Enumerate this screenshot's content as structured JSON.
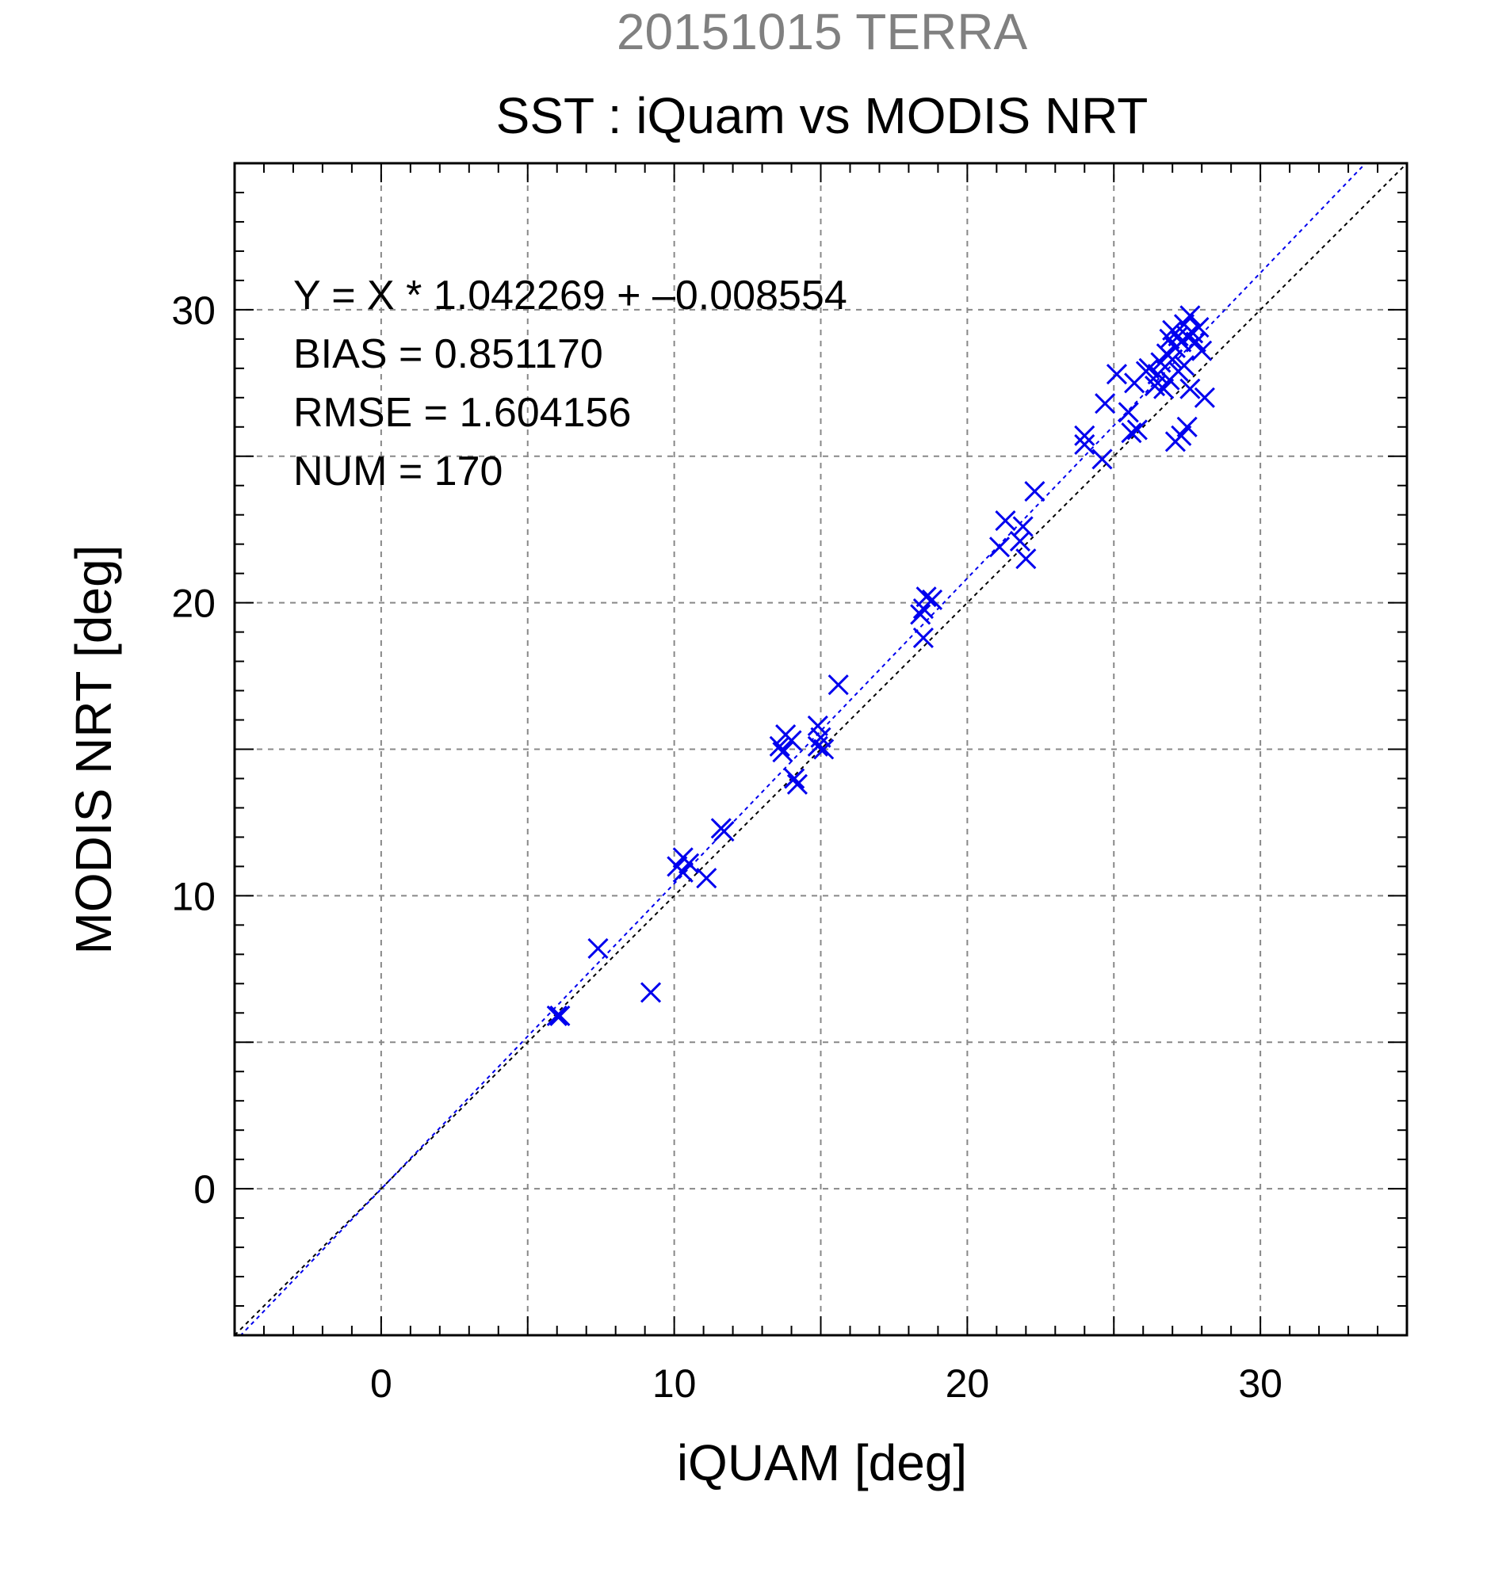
{
  "chart_data": {
    "type": "scatter",
    "title": "SST : iQuam vs MODIS NRT",
    "subtitle": "20151015 TERRA",
    "xlabel": "iQUAM [deg]",
    "ylabel": "MODIS NRT [deg]",
    "xlim": [
      -5,
      35
    ],
    "ylim": [
      -5,
      35
    ],
    "x_ticks": [
      0,
      10,
      20,
      30
    ],
    "y_ticks": [
      0,
      10,
      20,
      30
    ],
    "x_tick_labels": [
      "0",
      "10",
      "20",
      "30"
    ],
    "y_tick_labels": [
      "0",
      "10",
      "20",
      "30"
    ],
    "grid": true,
    "colors": {
      "points": "#0000ee",
      "fit_line": "#0000ee",
      "one_to_one": "#000000",
      "subtitle": "#808080",
      "text": "#000000",
      "grid": "#888888"
    },
    "stats": {
      "equation": "Y = X * 1.042269 + –0.008554",
      "bias": "BIAS = 0.851170",
      "rmse": "RMSE = 1.604156",
      "num": "NUM = 170"
    },
    "fit": {
      "slope": 1.042269,
      "intercept": -0.008554
    },
    "series": [
      {
        "marker": "x",
        "points": [
          [
            6.0,
            5.9
          ],
          [
            6.1,
            5.9
          ],
          [
            7.4,
            8.2
          ],
          [
            9.2,
            6.7
          ],
          [
            10.1,
            11.0
          ],
          [
            10.3,
            11.3
          ],
          [
            10.5,
            11.1
          ],
          [
            10.3,
            10.8
          ],
          [
            11.1,
            10.6
          ],
          [
            11.6,
            12.3
          ],
          [
            11.7,
            12.2
          ],
          [
            13.6,
            15.1
          ],
          [
            13.8,
            15.5
          ],
          [
            14.0,
            15.3
          ],
          [
            13.7,
            14.9
          ],
          [
            14.1,
            14.0
          ],
          [
            14.2,
            13.8
          ],
          [
            14.9,
            15.1
          ],
          [
            15.0,
            15.4
          ],
          [
            14.9,
            15.8
          ],
          [
            15.1,
            15.0
          ],
          [
            15.6,
            17.2
          ],
          [
            18.4,
            19.6
          ],
          [
            18.5,
            19.8
          ],
          [
            18.6,
            20.2
          ],
          [
            18.8,
            20.1
          ],
          [
            18.5,
            18.8
          ],
          [
            21.1,
            21.9
          ],
          [
            21.3,
            22.8
          ],
          [
            21.8,
            22.1
          ],
          [
            21.9,
            22.6
          ],
          [
            22.0,
            21.5
          ],
          [
            22.3,
            23.8
          ],
          [
            24.0,
            25.7
          ],
          [
            24.0,
            25.4
          ],
          [
            24.6,
            24.9
          ],
          [
            24.7,
            26.8
          ],
          [
            25.1,
            27.8
          ],
          [
            25.5,
            26.5
          ],
          [
            25.6,
            25.8
          ],
          [
            25.7,
            27.5
          ],
          [
            25.8,
            25.9
          ],
          [
            26.1,
            27.9
          ],
          [
            26.2,
            28.0
          ],
          [
            26.4,
            27.4
          ],
          [
            26.5,
            27.8
          ],
          [
            26.6,
            28.2
          ],
          [
            26.7,
            27.3
          ],
          [
            26.8,
            28.5
          ],
          [
            26.9,
            29.0
          ],
          [
            26.9,
            27.6
          ],
          [
            27.0,
            28.3
          ],
          [
            27.0,
            29.3
          ],
          [
            27.1,
            28.7
          ],
          [
            27.1,
            25.5
          ],
          [
            27.2,
            29.1
          ],
          [
            27.2,
            27.9
          ],
          [
            27.3,
            28.9
          ],
          [
            27.3,
            25.7
          ],
          [
            27.4,
            29.5
          ],
          [
            27.4,
            28.1
          ],
          [
            27.5,
            26.0
          ],
          [
            27.5,
            29.1
          ],
          [
            27.6,
            27.3
          ],
          [
            27.7,
            29.2
          ],
          [
            27.8,
            28.9
          ],
          [
            27.9,
            29.4
          ],
          [
            28.0,
            28.6
          ],
          [
            28.1,
            27.0
          ],
          [
            27.6,
            29.8
          ]
        ]
      }
    ]
  }
}
